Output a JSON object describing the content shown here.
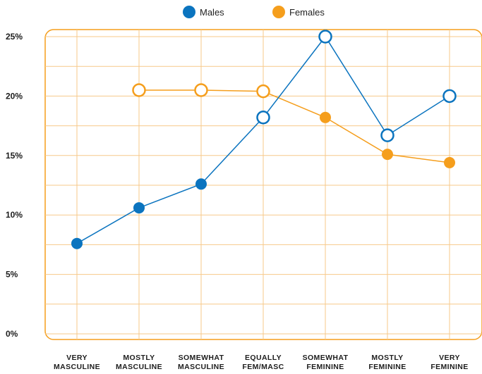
{
  "chart_data": {
    "type": "line",
    "categories": [
      [
        "VERY",
        "MASCULINE"
      ],
      [
        "MOSTLY",
        "MASCULINE"
      ],
      [
        "SOMEWHAT",
        "MASCULINE"
      ],
      [
        "EQUALLY",
        "FEM/MASC"
      ],
      [
        "SOMEWHAT",
        "FEMININE"
      ],
      [
        "MOSTLY",
        "FEMININE"
      ],
      [
        "VERY",
        "FEMININE"
      ]
    ],
    "series": [
      {
        "name": "Males",
        "color": "#0b74bf",
        "values": [
          7.6,
          10.6,
          12.6,
          18.2,
          25.0,
          16.7,
          20.0
        ],
        "hollow": [
          false,
          false,
          false,
          true,
          true,
          true,
          true
        ]
      },
      {
        "name": "Females",
        "color": "#f59e1c",
        "values": [
          null,
          20.5,
          20.5,
          20.4,
          18.2,
          15.1,
          14.4
        ],
        "hollow": [
          false,
          true,
          true,
          true,
          false,
          false,
          false
        ]
      }
    ],
    "y_ticks": [
      "0%",
      "5%",
      "10%",
      "15%",
      "20%",
      "25%"
    ],
    "ylim": [
      0,
      26
    ],
    "grid": true,
    "legend_position": "top-center",
    "frame_color": "#f59e1c",
    "grid_color": "#f7c98a"
  }
}
